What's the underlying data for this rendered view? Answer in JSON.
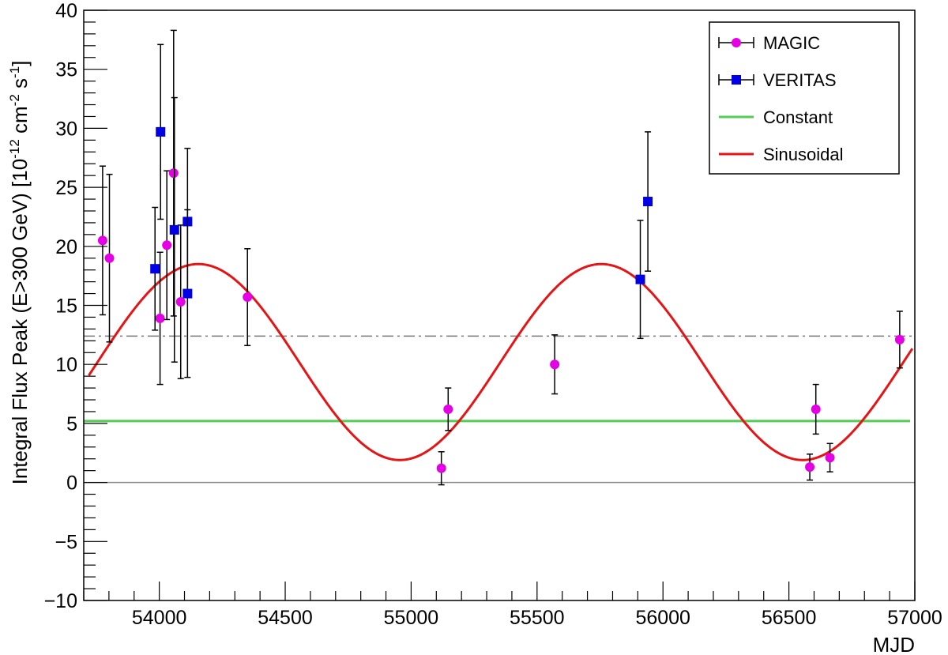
{
  "chart_data": {
    "type": "scatter",
    "xlabel": "MJD",
    "ylabel": {
      "main": "Integral Flux Peak (E>300 GeV) [10",
      "exp1": "-12",
      "mid1": " cm",
      "exp2": "-2",
      "mid2": " s",
      "exp3": "-1",
      "end": "]"
    },
    "xlim": [
      53700,
      57000
    ],
    "ylim": [
      -10,
      40
    ],
    "x_ticks": [
      {
        "value": 54000,
        "label": "54000"
      },
      {
        "value": 54500,
        "label": "54500"
      },
      {
        "value": 55000,
        "label": "55000"
      },
      {
        "value": 55500,
        "label": "55500"
      },
      {
        "value": 56000,
        "label": "56000"
      },
      {
        "value": 56500,
        "label": "56500"
      },
      {
        "value": 57000,
        "label": "57000"
      }
    ],
    "y_ticks": [
      {
        "value": -10,
        "label": "−10"
      },
      {
        "value": -5,
        "label": "−5"
      },
      {
        "value": 0,
        "label": "0"
      },
      {
        "value": 5,
        "label": "5"
      },
      {
        "value": 10,
        "label": "10"
      },
      {
        "value": 15,
        "label": "15"
      },
      {
        "value": 20,
        "label": "20"
      },
      {
        "value": 25,
        "label": "25"
      },
      {
        "value": 30,
        "label": "30"
      },
      {
        "value": 35,
        "label": "35"
      },
      {
        "value": 40,
        "label": "40"
      }
    ],
    "series": [
      {
        "name": "MAGIC",
        "marker": "circle",
        "color": "#e600e6",
        "points": [
          {
            "x": 53775,
            "y": 20.5,
            "yerr": 6.3
          },
          {
            "x": 53802,
            "y": 19.0,
            "yerr": 7.1
          },
          {
            "x": 54003,
            "y": 13.9,
            "yerr": 5.6
          },
          {
            "x": 54030,
            "y": 20.1,
            "yerr": 6.3
          },
          {
            "x": 54057,
            "y": 26.2,
            "yerr": 12.1
          },
          {
            "x": 54085,
            "y": 15.3,
            "yerr": 6.5
          },
          {
            "x": 54350,
            "y": 15.7,
            "yerr": 4.1
          },
          {
            "x": 55120,
            "y": 1.2,
            "yerr": 1.4
          },
          {
            "x": 55147,
            "y": 6.2,
            "yerr": 1.8
          },
          {
            "x": 55570,
            "y": 10.0,
            "yerr": 2.5
          },
          {
            "x": 56583,
            "y": 1.3,
            "yerr": 1.1
          },
          {
            "x": 56607,
            "y": 6.2,
            "yerr": 2.1
          },
          {
            "x": 56663,
            "y": 2.1,
            "yerr": 1.2
          },
          {
            "x": 56940,
            "y": 12.1,
            "yerr": 2.4
          }
        ]
      },
      {
        "name": "VERITAS",
        "marker": "square",
        "color": "#0000e6",
        "points": [
          {
            "x": 53983,
            "y": 18.1,
            "yerr": 5.2
          },
          {
            "x": 54005,
            "y": 29.7,
            "yerr": 7.4
          },
          {
            "x": 54060,
            "y": 21.4,
            "yerr": 11.2
          },
          {
            "x": 54112,
            "y": 22.1,
            "yerr": 6.2
          },
          {
            "x": 54112,
            "y": 16.0,
            "yerr": 7.1
          },
          {
            "x": 55910,
            "y": 17.2,
            "yerr": 5.0
          },
          {
            "x": 55940,
            "y": 23.8,
            "yerr": 5.9
          }
        ]
      }
    ],
    "fits": [
      {
        "name": "Constant",
        "color": "#55cc55",
        "value": 5.2
      },
      {
        "name": "Sinusoidal",
        "color": "#e61414",
        "offset": 10.2,
        "amplitude": 8.3,
        "period": 1600,
        "peak_x": 54155
      }
    ],
    "reference_lines": [
      {
        "name": "mean-line",
        "value": 12.4,
        "style": "dash-dot",
        "color": "#777777"
      },
      {
        "name": "zero-line",
        "value": 0,
        "style": "solid",
        "color": "#888888"
      }
    ],
    "legend": {
      "placement": "top-right",
      "entries": [
        {
          "label": "MAGIC",
          "kind": "circle",
          "color": "#e600e6"
        },
        {
          "label": "VERITAS",
          "kind": "square",
          "color": "#0000e6"
        },
        {
          "label": "Constant",
          "kind": "line",
          "color": "#55cc55"
        },
        {
          "label": "Sinusoidal",
          "kind": "line",
          "color": "#e61414"
        }
      ]
    }
  }
}
